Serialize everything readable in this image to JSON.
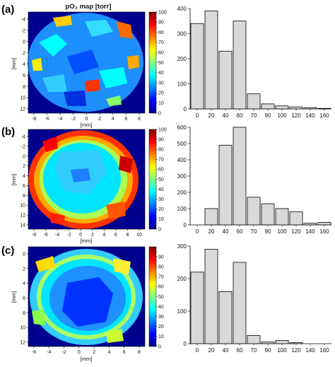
{
  "figure_title": "pO₂ map [torr]",
  "colorbar": {
    "stops": [
      "#00008f",
      "#0000ff",
      "#0080ff",
      "#00ffff",
      "#80ff80",
      "#ffff00",
      "#ff8000",
      "#ff0000",
      "#800000"
    ]
  },
  "chart_data": [
    {
      "type": "heatmap",
      "panel_label": "(a)",
      "title": "pO₂ map [torr]",
      "xlabel": "[mm]",
      "ylabel": "[mm]",
      "xticks": [
        "-8",
        "-6",
        "-4",
        "-2",
        "0",
        "2",
        "4",
        "6",
        "8"
      ],
      "yticks": [
        "-4",
        "-2",
        "0",
        "2",
        "4",
        "6",
        "8",
        "10",
        "12"
      ],
      "colorbar_range": [
        0,
        100
      ],
      "colorbar_ticks": [
        "100",
        "90",
        "80",
        "70",
        "60",
        "50",
        "40",
        "30",
        "20",
        "10",
        "0"
      ]
    },
    {
      "type": "bar",
      "panel_label": "(a)",
      "categories": [
        "0",
        "20",
        "40",
        "60",
        "70",
        "90",
        "100",
        "120",
        "140",
        "160"
      ],
      "values": [
        340,
        390,
        230,
        350,
        60,
        20,
        12,
        8,
        5,
        2
      ],
      "yticks": [
        "0",
        "100",
        "200",
        "300",
        "400"
      ],
      "ylim": [
        0,
        400
      ]
    },
    {
      "type": "heatmap",
      "panel_label": "(b)",
      "xlabel": "[mm]",
      "ylabel": "[mm]",
      "xticks": [
        "-8",
        "-6",
        "-4",
        "-2",
        "0",
        "2",
        "4",
        "6",
        "8",
        "10"
      ],
      "yticks": [
        "-4",
        "-2",
        "0",
        "2",
        "4",
        "6",
        "8",
        "10",
        "12",
        "14"
      ],
      "colorbar_range": [
        0,
        100
      ],
      "colorbar_ticks": [
        "100",
        "90",
        "80",
        "70",
        "60",
        "50",
        "40",
        "30",
        "20",
        "10",
        "0"
      ]
    },
    {
      "type": "bar",
      "panel_label": "(b)",
      "categories": [
        "0",
        "20",
        "40",
        "60",
        "70",
        "90",
        "100",
        "120",
        "140",
        "160"
      ],
      "values": [
        0,
        100,
        490,
        600,
        170,
        130,
        100,
        80,
        10,
        15
      ],
      "yticks": [
        "0",
        "100",
        "200",
        "300",
        "400",
        "500",
        "600"
      ],
      "ylim": [
        0,
        600
      ]
    },
    {
      "type": "heatmap",
      "panel_label": "(c)",
      "xlabel": "[mm]",
      "ylabel": "[mm]",
      "xticks": [
        "-6",
        "-4",
        "-2",
        "0",
        "2",
        "4",
        "6",
        "8"
      ],
      "yticks": [
        "0",
        "2",
        "4",
        "6",
        "8",
        "10",
        "12"
      ],
      "colorbar_range": [
        0,
        100
      ],
      "colorbar_ticks": [
        "90",
        "80",
        "70",
        "60",
        "50",
        "40",
        "30",
        "20",
        "10",
        "0"
      ]
    },
    {
      "type": "bar",
      "panel_label": "(c)",
      "categories": [
        "0",
        "20",
        "40",
        "60",
        "70",
        "90",
        "100",
        "120",
        "140",
        "160"
      ],
      "values": [
        220,
        290,
        160,
        250,
        25,
        5,
        10,
        3,
        0,
        0
      ],
      "yticks": [
        "0",
        "100",
        "200",
        "300"
      ],
      "ylim": [
        0,
        300
      ]
    }
  ]
}
